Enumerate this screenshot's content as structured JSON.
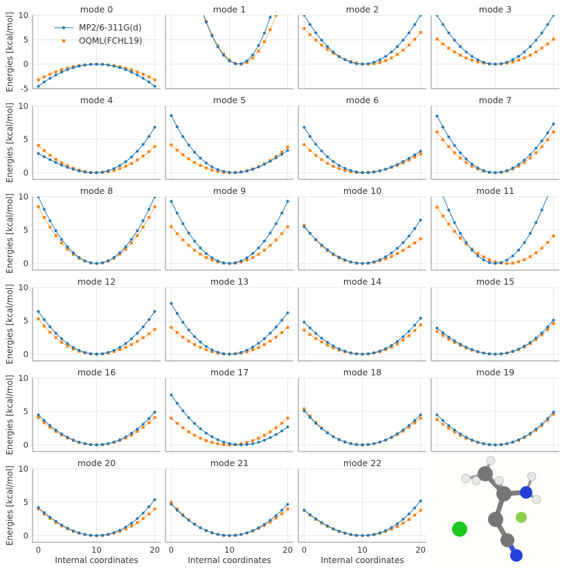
{
  "chart_data": {
    "type": "line",
    "ylabel": "Energies [kcal/mol]",
    "xlabel": "Internal coordinates",
    "xlim": [
      -1,
      21
    ],
    "xticks": [
      0,
      10,
      20
    ],
    "legend": {
      "placement": "top-left of first panel",
      "entries": [
        {
          "name": "MP2/6-311G(d)",
          "color": "#1f77b4",
          "marker": "circle"
        },
        {
          "name": "OQML(FCHL19)",
          "color": "#ff7f0e",
          "marker": "square"
        }
      ]
    },
    "colors": {
      "reference": "#1f77b4",
      "model": "#ff7f0e",
      "grid": "#e6e6e6",
      "axis": "#888888"
    },
    "panels": [
      {
        "title": "mode 0",
        "ylim": [
          -5,
          10
        ],
        "yticks": [
          -5,
          0,
          5,
          10
        ],
        "reference": {
          "a": -0.045,
          "b": 0.0,
          "m": 10
        },
        "model": {
          "a": -0.032,
          "b": 0.0,
          "m": 10
        }
      },
      {
        "title": "mode 1",
        "ylim": [
          -5,
          10
        ],
        "yticks": [
          -5,
          0,
          5,
          10
        ],
        "reference": {
          "a": 0.3,
          "b": 0.003,
          "m": 11.5
        },
        "model": {
          "a": 0.26,
          "b": 0.0,
          "m": 11.8
        }
      },
      {
        "title": "mode 2",
        "ylim": [
          -5,
          10
        ],
        "yticks": [
          -5,
          0,
          5,
          10
        ],
        "reference": {
          "a": 0.1,
          "b": 0.0,
          "m": 10
        },
        "model": {
          "a": 0.07,
          "b": 0.0007,
          "m": 10.8
        }
      },
      {
        "title": "mode 3",
        "ylim": [
          -5,
          10
        ],
        "yticks": [
          -5,
          0,
          5,
          10
        ],
        "reference": {
          "a": 0.1,
          "b": 0.0,
          "m": 10
        },
        "model": {
          "a": 0.051,
          "b": 0.0,
          "m": 10
        }
      },
      {
        "title": "mode 4",
        "ylim": [
          -1,
          10
        ],
        "yticks": [
          0,
          5,
          10
        ],
        "reference": {
          "a": 0.046,
          "b": 0.0015,
          "m": 9.5
        },
        "model": {
          "a": 0.04,
          "b": 0.0,
          "m": 10.1
        }
      },
      {
        "title": "mode 5",
        "ylim": [
          -1,
          10
        ],
        "yticks": [
          0,
          5,
          10
        ],
        "reference": {
          "a": 0.055,
          "b": -0.0017,
          "m": 10.8
        },
        "model": {
          "a": 0.04,
          "b": 0.0,
          "m": 10.2
        }
      },
      {
        "title": "mode 6",
        "ylim": [
          -1,
          10
        ],
        "yticks": [
          0,
          5,
          10
        ],
        "reference": {
          "a": 0.048,
          "b": -0.0013,
          "m": 10.5
        },
        "model": {
          "a": 0.035,
          "b": -0.0007,
          "m": 10
        }
      },
      {
        "title": "mode 7",
        "ylim": [
          -1,
          10
        ],
        "yticks": [
          0,
          5,
          10
        ],
        "reference": {
          "a": 0.079,
          "b": -0.0006,
          "m": 10
        },
        "model": {
          "a": 0.061,
          "b": 0.0,
          "m": 10
        }
      },
      {
        "title": "mode 8",
        "ylim": [
          -1,
          10
        ],
        "yticks": [
          0,
          5,
          10
        ],
        "reference": {
          "a": 0.1,
          "b": 0.0,
          "m": 10
        },
        "model": {
          "a": 0.085,
          "b": 0.0,
          "m": 10
        }
      },
      {
        "title": "mode 9",
        "ylim": [
          -1,
          10
        ],
        "yticks": [
          0,
          5,
          10
        ],
        "reference": {
          "a": 0.093,
          "b": 0.0,
          "m": 10
        },
        "model": {
          "a": 0.055,
          "b": 0.0,
          "m": 10
        }
      },
      {
        "title": "mode 10",
        "ylim": [
          -1,
          10
        ],
        "yticks": [
          0,
          5,
          10
        ],
        "reference": {
          "a": 0.06,
          "b": 0.0005,
          "m": 10
        },
        "model": {
          "a": 0.047,
          "b": -0.001,
          "m": 10
        }
      },
      {
        "title": "mode 11",
        "ylim": [
          -1,
          10
        ],
        "yticks": [
          0,
          5,
          10
        ],
        "reference": {
          "a": 0.125,
          "b": 0.0,
          "m": 10
        },
        "model": {
          "a": 0.062,
          "b": 0.0003,
          "m": 12
        }
      },
      {
        "title": "mode 12",
        "ylim": [
          -1,
          10
        ],
        "yticks": [
          0,
          5,
          10
        ],
        "reference": {
          "a": 0.064,
          "b": 0.0,
          "m": 10
        },
        "model": {
          "a": 0.045,
          "b": -0.0008,
          "m": 10
        }
      },
      {
        "title": "mode 13",
        "ylim": [
          -1,
          10
        ],
        "yticks": [
          0,
          5,
          10
        ],
        "reference": {
          "a": 0.069,
          "b": -0.0007,
          "m": 10
        },
        "model": {
          "a": 0.04,
          "b": 0.0,
          "m": 10
        }
      },
      {
        "title": "mode 14",
        "ylim": [
          -1,
          10
        ],
        "yticks": [
          0,
          5,
          10
        ],
        "reference": {
          "a": 0.051,
          "b": 0.0003,
          "m": 10
        },
        "model": {
          "a": 0.04,
          "b": 0.0004,
          "m": 10
        }
      },
      {
        "title": "mode 15",
        "ylim": [
          -1,
          10
        ],
        "yticks": [
          0,
          5,
          10
        ],
        "reference": {
          "a": 0.045,
          "b": 0.0006,
          "m": 10
        },
        "model": {
          "a": 0.04,
          "b": 0.0006,
          "m": 10
        }
      },
      {
        "title": "mode 16",
        "ylim": [
          -1,
          10
        ],
        "yticks": [
          0,
          5,
          10
        ],
        "reference": {
          "a": 0.047,
          "b": 0.0002,
          "m": 10
        },
        "model": {
          "a": 0.041,
          "b": 0.0,
          "m": 10
        }
      },
      {
        "title": "mode 17",
        "ylim": [
          -1,
          10
        ],
        "yticks": [
          0,
          5,
          10
        ],
        "reference": {
          "a": 0.046,
          "b": -0.0005,
          "m": 12
        },
        "model": {
          "a": 0.04,
          "b": 0.0,
          "m": 10
        }
      },
      {
        "title": "mode 18",
        "ylim": [
          -1,
          10
        ],
        "yticks": [
          0,
          5,
          10
        ],
        "reference": {
          "a": 0.048,
          "b": -0.0003,
          "m": 10
        },
        "model": {
          "a": 0.047,
          "b": -0.0007,
          "m": 10
        }
      },
      {
        "title": "mode 19",
        "ylim": [
          -1,
          10
        ],
        "yticks": [
          0,
          5,
          10
        ],
        "reference": {
          "a": 0.047,
          "b": 0.0002,
          "m": 10
        },
        "model": {
          "a": 0.042,
          "b": 0.0004,
          "m": 10
        }
      },
      {
        "title": "mode 20",
        "ylim": [
          -1,
          10
        ],
        "yticks": [
          0,
          5,
          10
        ],
        "reference": {
          "a": 0.048,
          "b": 0.0006,
          "m": 10
        },
        "model": {
          "a": 0.04,
          "b": 0.0,
          "m": 10
        }
      },
      {
        "title": "mode 21",
        "ylim": [
          -1,
          10
        ],
        "yticks": [
          0,
          5,
          10
        ],
        "reference": {
          "a": 0.047,
          "b": 0.0,
          "m": 10
        },
        "model": {
          "a": 0.045,
          "b": -0.0005,
          "m": 10
        }
      },
      {
        "title": "mode 22",
        "ylim": [
          -1,
          10
        ],
        "yticks": [
          0,
          5,
          10
        ],
        "reference": {
          "a": 0.045,
          "b": 0.0007,
          "m": 10
        },
        "model": {
          "a": 0.038,
          "b": 0.0,
          "m": 10
        }
      }
    ]
  }
}
